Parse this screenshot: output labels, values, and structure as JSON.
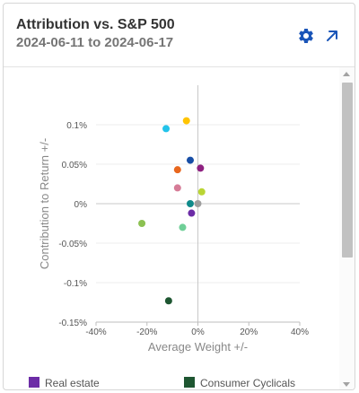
{
  "widget": {
    "title": "Attribution vs. S&P 500",
    "date_range": "2024-06-11 to 2024-06-17",
    "settings_icon": "gear-icon",
    "expand_icon": "arrow-up-right-icon"
  },
  "chart_data": {
    "type": "scatter",
    "xlabel": "Average Weight +/-",
    "ylabel": "Contribution to Return +/-",
    "xlim": [
      -40,
      40
    ],
    "ylim": [
      -0.15,
      0.15
    ],
    "x_ticks": [
      -40,
      -20,
      0,
      20,
      40
    ],
    "x_tick_labels": [
      "-40%",
      "-20%",
      "0%",
      "20%",
      "40%"
    ],
    "y_ticks": [
      0.1,
      0.05,
      0,
      -0.05,
      -0.1,
      -0.15
    ],
    "y_tick_labels": [
      "0.1%",
      "0.05%",
      "0%",
      "-0.05%",
      "-0.1%",
      "-0.15%"
    ],
    "grid": "horizontal",
    "points": [
      {
        "x": -4.5,
        "y": 0.105,
        "color": "#ffc400"
      },
      {
        "x": -12.5,
        "y": 0.095,
        "color": "#22c3ea"
      },
      {
        "x": -3,
        "y": 0.055,
        "color": "#174ea6"
      },
      {
        "x": 1,
        "y": 0.045,
        "color": "#8e2080"
      },
      {
        "x": -8,
        "y": 0.043,
        "color": "#e8671e"
      },
      {
        "x": -8,
        "y": 0.02,
        "color": "#d67c97"
      },
      {
        "x": 1.5,
        "y": 0.015,
        "color": "#bad534"
      },
      {
        "x": -3,
        "y": 0.0,
        "color": "#0f8a8a"
      },
      {
        "x": 0,
        "y": 0.0,
        "color": "#9e9e9e"
      },
      {
        "x": -2.5,
        "y": -0.012,
        "color": "#6c2ca6"
      },
      {
        "x": -22,
        "y": -0.025,
        "color": "#8cc152"
      },
      {
        "x": -6,
        "y": -0.03,
        "color": "#6fcf97"
      },
      {
        "x": -11.5,
        "y": -0.123,
        "color": "#1e5631"
      }
    ],
    "legend_placement": "bottom",
    "legend": [
      {
        "label": "Real estate",
        "color": "#6c2ca6"
      },
      {
        "label": "Consumer Cyclicals",
        "color": "#1e5631"
      }
    ]
  }
}
